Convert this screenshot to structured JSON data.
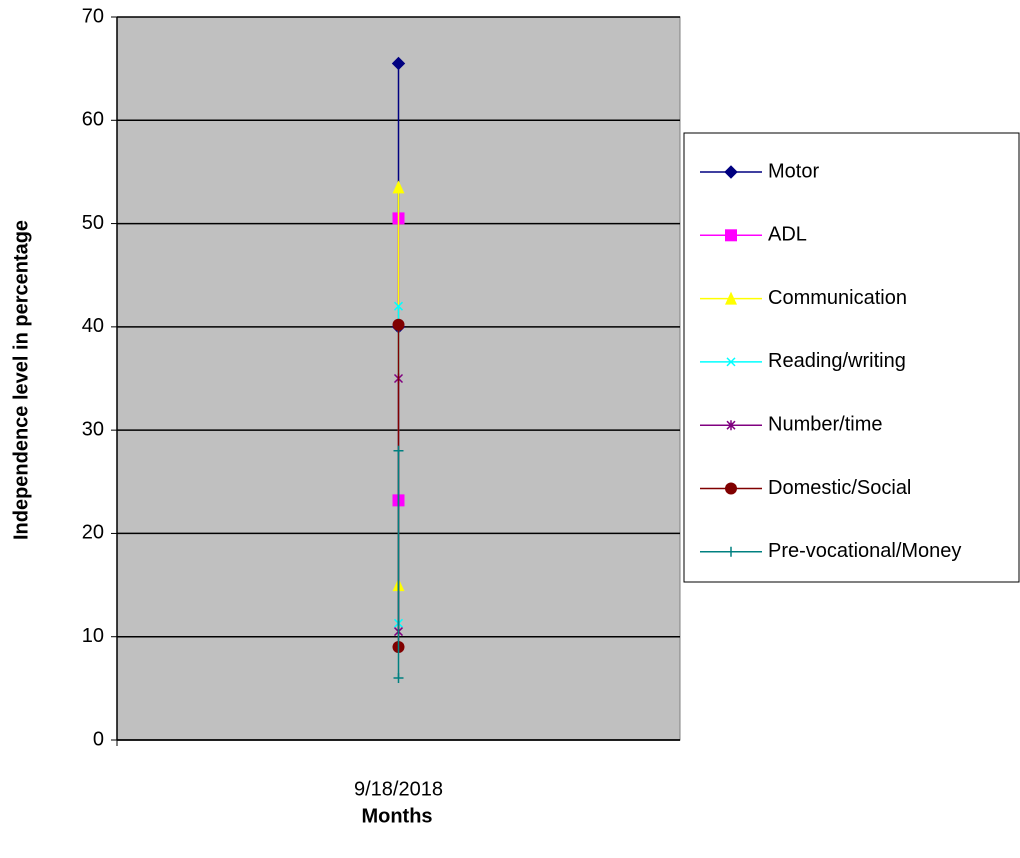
{
  "chart_data": {
    "type": "line",
    "x_label": "Months",
    "y_label": "Independence level in percentage",
    "x": [
      "9/18/2018",
      "9/18/2018"
    ],
    "ylim": [
      0,
      70
    ],
    "yticks": [
      0,
      10,
      20,
      30,
      40,
      50,
      60,
      70
    ],
    "grid": true,
    "legend": "right",
    "series": [
      {
        "name": "Motor",
        "color": "#000080",
        "marker": "diamond",
        "values": [
          65.5,
          40
        ]
      },
      {
        "name": "ADL",
        "color": "#ff00ff",
        "marker": "square",
        "values": [
          50.5,
          23.2
        ]
      },
      {
        "name": "Communication",
        "color": "#ffff00",
        "marker": "triangle",
        "values": [
          53.5,
          15
        ]
      },
      {
        "name": "Reading/writing",
        "color": "#00ffff",
        "marker": "x",
        "values": [
          42,
          11.3
        ]
      },
      {
        "name": "Number/time",
        "color": "#800080",
        "marker": "star",
        "values": [
          35,
          10.5
        ]
      },
      {
        "name": "Domestic/Social",
        "color": "#800000",
        "marker": "circle",
        "values": [
          40.2,
          9
        ]
      },
      {
        "name": "Pre-vocational/Money",
        "color": "#008080",
        "marker": "plus",
        "values": [
          28,
          6
        ]
      }
    ]
  }
}
